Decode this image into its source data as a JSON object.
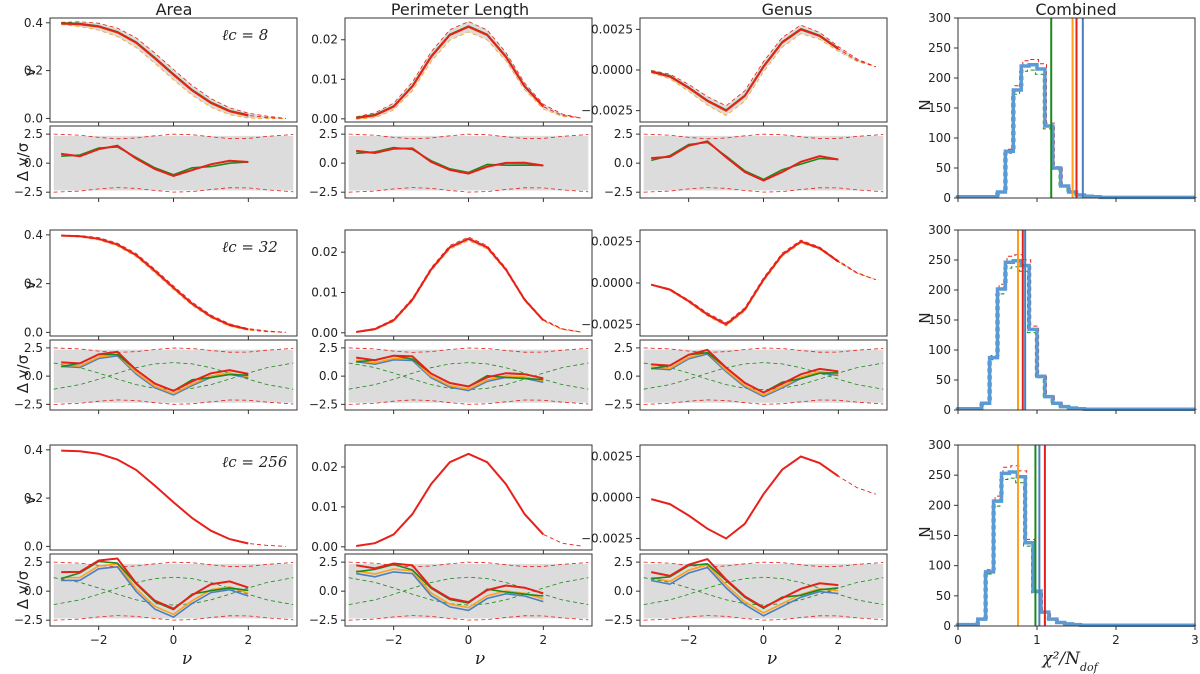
{
  "figure": {
    "column_titles": [
      "Area",
      "Perimeter Length",
      "Genus",
      "Combined"
    ],
    "row_labels": [
      "ℓc = 8",
      "ℓc = 32",
      "ℓc = 256"
    ],
    "ylabel_top": "v",
    "ylabel_bottom": "Δ v/σ",
    "ylabel_hist": "N",
    "xlabel_nu": "ν",
    "xlabel_hist": "χ²/N",
    "xlabel_hist_sub": "dof"
  },
  "colors": {
    "blue": "#4a7fbf",
    "orange": "#ff9f1a",
    "green": "#1a8a1a",
    "red": "#e8201a",
    "band": "#dcdcdc",
    "band_orange": "#f0ddd0",
    "hist_line": "#5b9bd5"
  },
  "chart_data": [
    {
      "type": "line",
      "name": "area-v",
      "x": [
        -3.0,
        -2.5,
        -2.0,
        -1.5,
        -1.0,
        -0.5,
        0.0,
        0.5,
        1.0,
        1.5,
        2.0,
        2.5,
        3.0
      ],
      "values": [
        0.397,
        0.394,
        0.384,
        0.36,
        0.317,
        0.252,
        0.183,
        0.117,
        0.065,
        0.03,
        0.012,
        0.004,
        0.0
      ],
      "xlim": [
        -3.3,
        3.3
      ],
      "ylim": [
        -0.015,
        0.42
      ],
      "yticks": [
        0.0,
        0.2,
        0.4
      ],
      "ytick_labels": [
        "0.0",
        "0.2",
        "0.4"
      ]
    },
    {
      "type": "line",
      "name": "perimeter-v",
      "x": [
        -3.0,
        -2.5,
        -2.0,
        -1.5,
        -1.0,
        -0.5,
        0.0,
        0.5,
        1.0,
        1.5,
        2.0,
        2.5,
        3.0
      ],
      "values": [
        0.0002,
        0.0009,
        0.0031,
        0.0082,
        0.0157,
        0.0212,
        0.0233,
        0.0212,
        0.0157,
        0.0082,
        0.0031,
        0.0009,
        0.0002
      ],
      "xlim": [
        -3.3,
        3.3
      ],
      "ylim": [
        -0.0008,
        0.0255
      ],
      "yticks": [
        0.0,
        0.01,
        0.02
      ],
      "ytick_labels": [
        "0.00",
        "0.01",
        "0.02"
      ]
    },
    {
      "type": "line",
      "name": "genus-v",
      "x": [
        -3.0,
        -2.5,
        -2.0,
        -1.5,
        -1.0,
        -0.5,
        0.0,
        0.5,
        1.0,
        1.5,
        2.0,
        2.5,
        3.0
      ],
      "values": [
        -0.0001,
        -0.0004,
        -0.0011,
        -0.0019,
        -0.0025,
        -0.0016,
        0.0002,
        0.0017,
        0.0025,
        0.0021,
        0.0013,
        0.0006,
        0.0002
      ],
      "xlim": [
        -3.3,
        3.3
      ],
      "ylim": [
        -0.0032,
        0.0032
      ],
      "yticks": [
        -0.0025,
        0.0,
        0.0025
      ],
      "ytick_labels": [
        "−0.0025",
        "0.0000",
        "0.0025"
      ]
    },
    {
      "type": "line",
      "name": "delta-v",
      "x": [
        -3.0,
        -2.5,
        -2.0,
        -1.5,
        -1.0,
        -0.5,
        0.0,
        0.5,
        1.0,
        1.5,
        2.0
      ],
      "series": [
        {
          "name": "red",
          "values": [
            0.8,
            0.6,
            1.2,
            1.5,
            0.4,
            -0.5,
            -1.1,
            -0.6,
            -0.1,
            0.2,
            0.1
          ]
        },
        {
          "name": "green",
          "values": [
            0.6,
            0.7,
            1.3,
            1.4,
            0.5,
            -0.4,
            -1.0,
            -0.4,
            -0.3,
            0.0,
            0.1
          ]
        }
      ],
      "xlim": [
        -3.3,
        3.3
      ],
      "ylim": [
        -3.0,
        3.2
      ],
      "yticks": [
        -2.5,
        0.0,
        2.5
      ],
      "ytick_labels": [
        "−2.5",
        "0.0",
        "2.5"
      ]
    },
    {
      "type": "bar",
      "name": "combined-histogram",
      "bin_edges": [
        0.0,
        0.5,
        0.6,
        0.7,
        0.8,
        0.9,
        1.0,
        1.1,
        1.2,
        1.3,
        1.4,
        1.5,
        1.6,
        1.7,
        1.8,
        1.9,
        2.0,
        3.0
      ],
      "counts": [
        2,
        10,
        78,
        180,
        220,
        222,
        215,
        120,
        50,
        20,
        10,
        5,
        3,
        2,
        1,
        1,
        1
      ],
      "vlines": [
        {
          "name": "green",
          "values": [
            1.18,
            0.76,
            0.98
          ]
        },
        {
          "name": "orange",
          "values": [
            1.45,
            0.76,
            0.76
          ]
        },
        {
          "name": "red",
          "values": [
            1.5,
            0.82,
            1.1
          ]
        },
        {
          "name": "blue",
          "values": [
            1.58,
            0.85,
            1.03
          ]
        }
      ],
      "xlim": [
        0.0,
        3.0
      ],
      "ylim": [
        0,
        300
      ],
      "xticks": [
        0,
        1,
        2,
        3
      ],
      "xtick_labels": [
        "0",
        "1",
        "2",
        "3"
      ],
      "yticks": [
        0,
        50,
        100,
        150,
        200,
        250,
        300
      ],
      "ytick_labels": [
        "0",
        "50",
        "100",
        "150",
        "200",
        "250",
        "300"
      ]
    }
  ],
  "xaxis_nu": {
    "ticks": [
      -2,
      0,
      2
    ],
    "tick_labels": [
      "−2",
      "0",
      "2"
    ]
  }
}
